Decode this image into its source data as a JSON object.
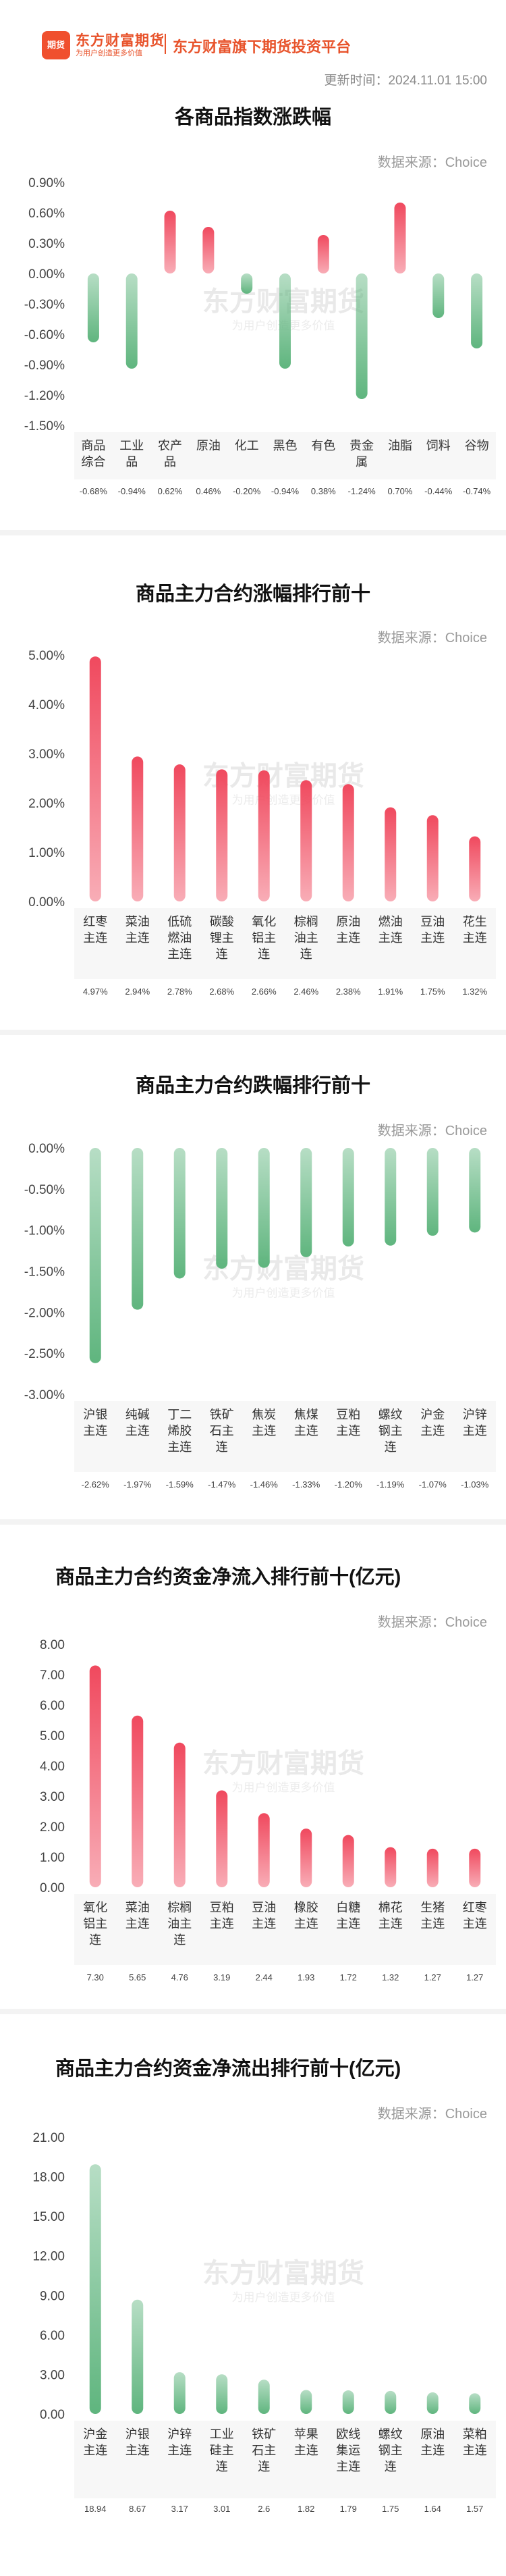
{
  "header": {
    "logo_text": "期货",
    "brand_name": "东方财富期货",
    "brand_slogan": "为用户创造更多价值",
    "platform_label": "东方财富旗下期货投资平台",
    "update_time": "更新时间：2024.11.01 15:00"
  },
  "watermark": {
    "main": "东方财富期货",
    "sub": "为用户创造更多价值"
  },
  "chart_data": [
    {
      "type": "bar",
      "title": "各商品指数涨跌幅",
      "source": "数据来源：Choice",
      "categories": [
        "商品综合",
        "工业品",
        "农产品",
        "原油",
        "化工",
        "黑色",
        "有色",
        "贵金属",
        "油脂",
        "饲料",
        "谷物"
      ],
      "category_lines": [
        [
          "商品",
          "综合"
        ],
        [
          "工业",
          "品"
        ],
        [
          "农产",
          "品"
        ],
        [
          "原油"
        ],
        [
          "化工"
        ],
        [
          "黑色"
        ],
        [
          "有色"
        ],
        [
          "贵金",
          "属"
        ],
        [
          "油脂"
        ],
        [
          "饲料"
        ],
        [
          "谷物"
        ]
      ],
      "values": [
        -0.68,
        -0.94,
        0.62,
        0.46,
        -0.2,
        -0.94,
        0.38,
        -1.24,
        0.7,
        -0.44,
        -0.74
      ],
      "value_labels": [
        "-0.68%",
        "-0.94%",
        "0.62%",
        "0.46%",
        "-0.20%",
        "-0.94%",
        "0.38%",
        "-1.24%",
        "0.70%",
        "-0.44%",
        "-0.74%"
      ],
      "yticks": [
        "0.90%",
        "0.60%",
        "0.30%",
        "0.00%",
        "-0.30%",
        "-0.60%",
        "-0.90%",
        "-1.20%",
        "-1.50%"
      ],
      "ylim": [
        -1.5,
        0.9
      ],
      "grid": false,
      "colors": {
        "positive": "#f0495e",
        "negative": "#5fb57e"
      }
    },
    {
      "type": "bar",
      "title": "商品主力合约涨幅排行前十",
      "source": "数据来源：Choice",
      "categories": [
        "红枣主连",
        "菜油主连",
        "低硫燃油主连",
        "碳酸锂主连",
        "氧化铝主连",
        "棕榈油主连",
        "原油主连",
        "燃油主连",
        "豆油主连",
        "花生主连"
      ],
      "category_lines": [
        [
          "红枣",
          "主连"
        ],
        [
          "菜油",
          "主连"
        ],
        [
          "低硫",
          "燃油",
          "主连"
        ],
        [
          "碳酸",
          "锂主",
          "连"
        ],
        [
          "氧化",
          "铝主",
          "连"
        ],
        [
          "棕榈",
          "油主",
          "连"
        ],
        [
          "原油",
          "主连"
        ],
        [
          "燃油",
          "主连"
        ],
        [
          "豆油",
          "主连"
        ],
        [
          "花生",
          "主连"
        ]
      ],
      "values": [
        4.97,
        2.94,
        2.78,
        2.68,
        2.66,
        2.46,
        2.38,
        1.91,
        1.75,
        1.32
      ],
      "value_labels": [
        "4.97%",
        "2.94%",
        "2.78%",
        "2.68%",
        "2.66%",
        "2.46%",
        "2.38%",
        "1.91%",
        "1.75%",
        "1.32%"
      ],
      "yticks": [
        "5.00%",
        "4.00%",
        "3.00%",
        "2.00%",
        "1.00%",
        "0.00%"
      ],
      "ylim": [
        0,
        5
      ],
      "grid": false,
      "colors": {
        "positive": "#f0495e",
        "negative": "#5fb57e"
      }
    },
    {
      "type": "bar",
      "title": "商品主力合约跌幅排行前十",
      "source": "数据来源：Choice",
      "categories": [
        "沪银主连",
        "纯碱主连",
        "丁二烯胶主连",
        "铁矿石主连",
        "焦炭主连",
        "焦煤主连",
        "豆粕主连",
        "螺纹钢主连",
        "沪金主连",
        "沪锌主连"
      ],
      "category_lines": [
        [
          "沪银",
          "主连"
        ],
        [
          "纯碱",
          "主连"
        ],
        [
          "丁二",
          "烯胶",
          "主连"
        ],
        [
          "铁矿",
          "石主",
          "连"
        ],
        [
          "焦炭",
          "主连"
        ],
        [
          "焦煤",
          "主连"
        ],
        [
          "豆粕",
          "主连"
        ],
        [
          "螺纹",
          "钢主",
          "连"
        ],
        [
          "沪金",
          "主连"
        ],
        [
          "沪锌",
          "主连"
        ]
      ],
      "values": [
        -2.62,
        -1.97,
        -1.59,
        -1.47,
        -1.46,
        -1.33,
        -1.2,
        -1.19,
        -1.07,
        -1.03
      ],
      "value_labels": [
        "-2.62%",
        "-1.97%",
        "-1.59%",
        "-1.47%",
        "-1.46%",
        "-1.33%",
        "-1.20%",
        "-1.19%",
        "-1.07%",
        "-1.03%"
      ],
      "yticks": [
        "0.00%",
        "-0.50%",
        "-1.00%",
        "-1.50%",
        "-2.00%",
        "-2.50%",
        "-3.00%"
      ],
      "ylim": [
        -3,
        0
      ],
      "grid": false,
      "colors": {
        "positive": "#f0495e",
        "negative": "#5fb57e"
      }
    },
    {
      "type": "bar",
      "title": "商品主力合约资金净流入排行前十(亿元)",
      "source": "数据来源：Choice",
      "categories": [
        "氧化铝主连",
        "菜油主连",
        "棕榈油主连",
        "豆粕主连",
        "豆油主连",
        "橡胶主连",
        "白糖主连",
        "棉花主连",
        "生猪主连",
        "红枣主连"
      ],
      "category_lines": [
        [
          "氧化",
          "铝主",
          "连"
        ],
        [
          "菜油",
          "主连"
        ],
        [
          "棕榈",
          "油主",
          "连"
        ],
        [
          "豆粕",
          "主连"
        ],
        [
          "豆油",
          "主连"
        ],
        [
          "橡胶",
          "主连"
        ],
        [
          "白糖",
          "主连"
        ],
        [
          "棉花",
          "主连"
        ],
        [
          "生猪",
          "主连"
        ],
        [
          "红枣",
          "主连"
        ]
      ],
      "values": [
        7.3,
        5.65,
        4.76,
        3.19,
        2.44,
        1.93,
        1.72,
        1.32,
        1.27,
        1.27
      ],
      "value_labels": [
        "7.30",
        "5.65",
        "4.76",
        "3.19",
        "2.44",
        "1.93",
        "1.72",
        "1.32",
        "1.27",
        "1.27"
      ],
      "yticks": [
        "8.00",
        "7.00",
        "6.00",
        "5.00",
        "4.00",
        "3.00",
        "2.00",
        "1.00",
        "0.00"
      ],
      "ylim": [
        0,
        8
      ],
      "grid": false,
      "colors": {
        "positive": "#f0495e",
        "negative": "#5fb57e"
      }
    },
    {
      "type": "bar",
      "title": "商品主力合约资金净流出排行前十(亿元)",
      "source": "数据来源：Choice",
      "categories": [
        "沪金主连",
        "沪银主连",
        "沪锌主连",
        "工业硅主连",
        "铁矿石主连",
        "苹果主连",
        "欧线集运主连",
        "螺纹钢主连",
        "原油主连",
        "菜粕主连"
      ],
      "category_lines": [
        [
          "沪金",
          "主连"
        ],
        [
          "沪银",
          "主连"
        ],
        [
          "沪锌",
          "主连"
        ],
        [
          "工业",
          "硅主",
          "连"
        ],
        [
          "铁矿",
          "石主",
          "连"
        ],
        [
          "苹果",
          "主连"
        ],
        [
          "欧线",
          "集运",
          "主连"
        ],
        [
          "螺纹",
          "钢主",
          "连"
        ],
        [
          "原油",
          "主连"
        ],
        [
          "菜粕",
          "主连"
        ]
      ],
      "values": [
        18.94,
        8.67,
        3.17,
        3.01,
        2.6,
        1.82,
        1.79,
        1.75,
        1.64,
        1.57
      ],
      "value_labels": [
        "18.94",
        "8.67",
        "3.17",
        "3.01",
        "2.6",
        "1.82",
        "1.79",
        "1.75",
        "1.64",
        "1.57"
      ],
      "yticks": [
        "21.00",
        "18.00",
        "15.00",
        "12.00",
        "9.00",
        "6.00",
        "3.00",
        "0.00"
      ],
      "ylim": [
        0,
        21
      ],
      "grid": false,
      "colors": {
        "positive": "#5fb57e",
        "negative": "#5fb57e"
      }
    }
  ]
}
